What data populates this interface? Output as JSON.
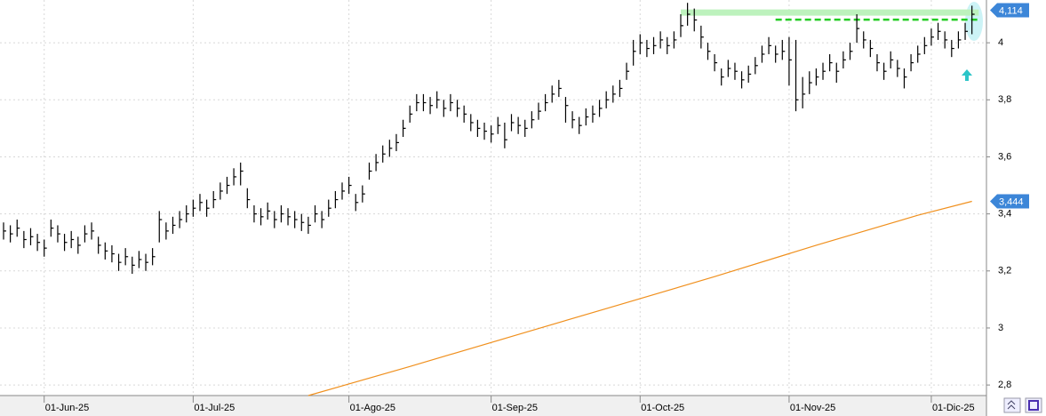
{
  "chart_data": {
    "type": "ohlc",
    "categories": [
      null,
      null,
      null,
      null,
      null,
      null,
      "01-Jun-25",
      null,
      null,
      null,
      null,
      null,
      null,
      null,
      null,
      null,
      null,
      null,
      null,
      null,
      null,
      null,
      null,
      null,
      null,
      null,
      null,
      null,
      "01-Jul-25",
      null,
      null,
      null,
      null,
      null,
      null,
      null,
      null,
      null,
      null,
      null,
      null,
      null,
      null,
      null,
      null,
      null,
      null,
      null,
      null,
      null,
      null,
      "01-Ago-25",
      null,
      null,
      null,
      null,
      null,
      null,
      null,
      null,
      null,
      null,
      null,
      null,
      null,
      null,
      null,
      null,
      null,
      null,
      null,
      null,
      "01-Sep-25",
      null,
      null,
      null,
      null,
      null,
      null,
      null,
      null,
      null,
      null,
      null,
      null,
      null,
      null,
      null,
      null,
      null,
      null,
      null,
      null,
      null,
      "01-Oct-25",
      null,
      null,
      null,
      null,
      null,
      null,
      null,
      null,
      null,
      null,
      null,
      null,
      null,
      null,
      null,
      null,
      null,
      null,
      null,
      null,
      null,
      "01-Nov-25",
      null,
      null,
      null,
      null,
      null,
      null,
      null,
      null,
      null,
      null,
      null,
      null,
      null,
      null,
      null,
      null,
      null,
      null,
      null,
      null,
      "01-Dic-25",
      null,
      null,
      null,
      null,
      null,
      null
    ],
    "series": [
      {
        "type": "ohlc",
        "color": "#000000",
        "high": [
          3.37,
          3.36,
          3.38,
          3.34,
          3.35,
          3.33,
          3.31,
          3.38,
          3.36,
          3.33,
          3.34,
          3.32,
          3.36,
          3.37,
          3.32,
          3.3,
          3.29,
          3.26,
          3.28,
          3.25,
          3.27,
          3.26,
          3.28,
          3.41,
          3.37,
          3.39,
          3.41,
          3.43,
          3.45,
          3.47,
          3.45,
          3.48,
          3.51,
          3.53,
          3.56,
          3.58,
          3.49,
          3.43,
          3.42,
          3.44,
          3.41,
          3.43,
          3.42,
          3.41,
          3.4,
          3.39,
          3.43,
          3.41,
          3.45,
          3.48,
          3.51,
          3.53,
          3.47,
          3.5,
          3.58,
          3.61,
          3.64,
          3.66,
          3.68,
          3.73,
          3.78,
          3.82,
          3.82,
          3.81,
          3.83,
          3.8,
          3.82,
          3.8,
          3.78,
          3.75,
          3.73,
          3.72,
          3.71,
          3.74,
          3.72,
          3.75,
          3.74,
          3.73,
          3.76,
          3.79,
          3.82,
          3.85,
          3.87,
          3.81,
          3.76,
          3.74,
          3.77,
          3.78,
          3.8,
          3.83,
          3.85,
          3.87,
          3.93,
          4.01,
          4.03,
          4.01,
          4.02,
          4.04,
          4.02,
          4.04,
          4.1,
          4.14,
          4.12,
          4.06,
          4.0,
          3.96,
          3.91,
          3.94,
          3.93,
          3.9,
          3.92,
          3.95,
          3.99,
          4.02,
          3.99,
          4.01,
          4.02,
          4.01,
          3.88,
          3.9,
          3.91,
          3.93,
          3.96,
          3.93,
          3.97,
          4.0,
          4.1,
          4.04,
          4.01,
          3.96,
          3.93,
          3.97,
          3.94,
          3.91,
          3.96,
          3.99,
          4.02,
          4.05,
          4.07,
          4.04,
          4.01,
          4.04,
          4.07,
          4.13
        ],
        "low": [
          3.31,
          3.3,
          3.32,
          3.28,
          3.29,
          3.27,
          3.25,
          3.32,
          3.3,
          3.27,
          3.28,
          3.26,
          3.3,
          3.31,
          3.26,
          3.24,
          3.23,
          3.2,
          3.22,
          3.19,
          3.21,
          3.2,
          3.22,
          3.3,
          3.31,
          3.33,
          3.35,
          3.37,
          3.39,
          3.41,
          3.39,
          3.42,
          3.45,
          3.47,
          3.5,
          3.5,
          3.42,
          3.37,
          3.36,
          3.38,
          3.35,
          3.37,
          3.36,
          3.35,
          3.34,
          3.33,
          3.37,
          3.35,
          3.39,
          3.42,
          3.45,
          3.47,
          3.41,
          3.44,
          3.52,
          3.55,
          3.58,
          3.6,
          3.62,
          3.67,
          3.72,
          3.76,
          3.76,
          3.75,
          3.77,
          3.74,
          3.76,
          3.74,
          3.72,
          3.69,
          3.67,
          3.66,
          3.65,
          3.68,
          3.63,
          3.69,
          3.68,
          3.67,
          3.7,
          3.73,
          3.76,
          3.79,
          3.81,
          3.72,
          3.7,
          3.68,
          3.71,
          3.72,
          3.74,
          3.77,
          3.79,
          3.81,
          3.87,
          3.92,
          3.96,
          3.95,
          3.96,
          3.98,
          3.96,
          3.98,
          4.02,
          4.06,
          4.04,
          3.98,
          3.94,
          3.9,
          3.85,
          3.88,
          3.87,
          3.84,
          3.86,
          3.89,
          3.93,
          3.96,
          3.93,
          3.94,
          3.85,
          3.76,
          3.77,
          3.82,
          3.85,
          3.87,
          3.9,
          3.86,
          3.91,
          3.94,
          4.0,
          3.98,
          3.95,
          3.9,
          3.87,
          3.91,
          3.88,
          3.84,
          3.9,
          3.93,
          3.96,
          3.99,
          4.01,
          3.98,
          3.95,
          3.98,
          4.01,
          4.03
        ],
        "close": [
          3.34,
          3.33,
          3.35,
          3.31,
          3.32,
          3.3,
          3.28,
          3.35,
          3.33,
          3.3,
          3.31,
          3.29,
          3.33,
          3.34,
          3.29,
          3.27,
          3.26,
          3.23,
          3.25,
          3.22,
          3.24,
          3.23,
          3.25,
          3.38,
          3.34,
          3.36,
          3.38,
          3.4,
          3.42,
          3.44,
          3.42,
          3.45,
          3.48,
          3.5,
          3.53,
          3.55,
          3.45,
          3.4,
          3.39,
          3.41,
          3.38,
          3.4,
          3.39,
          3.38,
          3.37,
          3.36,
          3.4,
          3.38,
          3.42,
          3.45,
          3.48,
          3.5,
          3.44,
          3.47,
          3.55,
          3.58,
          3.61,
          3.63,
          3.65,
          3.7,
          3.75,
          3.79,
          3.79,
          3.78,
          3.8,
          3.77,
          3.79,
          3.77,
          3.75,
          3.72,
          3.7,
          3.69,
          3.68,
          3.71,
          3.66,
          3.72,
          3.71,
          3.7,
          3.73,
          3.76,
          3.79,
          3.82,
          3.84,
          3.78,
          3.73,
          3.71,
          3.74,
          3.75,
          3.77,
          3.8,
          3.82,
          3.84,
          3.9,
          3.97,
          4.0,
          3.98,
          3.99,
          4.01,
          3.99,
          4.01,
          4.06,
          4.1,
          4.08,
          4.02,
          3.97,
          3.93,
          3.88,
          3.91,
          3.9,
          3.87,
          3.89,
          3.92,
          3.96,
          3.99,
          3.96,
          3.97,
          3.94,
          3.8,
          3.82,
          3.86,
          3.88,
          3.9,
          3.93,
          3.9,
          3.94,
          3.97,
          4.05,
          4.01,
          3.98,
          3.93,
          3.9,
          3.94,
          3.91,
          3.88,
          3.93,
          3.96,
          3.99,
          4.02,
          4.04,
          4.01,
          3.98,
          4.01,
          4.04,
          4.1
        ]
      },
      {
        "type": "line",
        "color": "#f0901e",
        "x": [
          45,
          60,
          75,
          90,
          105,
          120,
          135,
          143
        ],
        "values": [
          2.763,
          2.865,
          2.97,
          3.075,
          3.18,
          3.29,
          3.395,
          3.444
        ]
      }
    ],
    "levels": [
      {
        "value": 4.106,
        "x": [
          100,
          144
        ],
        "color": "#bdf2bd",
        "style": "solid"
      },
      {
        "value": 4.081,
        "x": [
          114,
          144
        ],
        "color": "#22cc22",
        "style": "dashed"
      }
    ],
    "price_labels": [
      {
        "value": 4.114,
        "label": "4,114",
        "color": "#3c86d8"
      },
      {
        "value": 3.444,
        "label": "3,444",
        "color": "#3c86d8"
      }
    ],
    "ylim": [
      2.763,
      4.15
    ],
    "yticks": [
      {
        "value": 2.8,
        "label": "2,8"
      },
      3,
      {
        "value": 3.2,
        "label": "3,2"
      },
      {
        "value": 3.4,
        "label": "3,4"
      },
      {
        "value": 3.6,
        "label": "3,6"
      },
      {
        "value": 3.8,
        "label": "3,8"
      },
      4
    ],
    "grid": true
  }
}
